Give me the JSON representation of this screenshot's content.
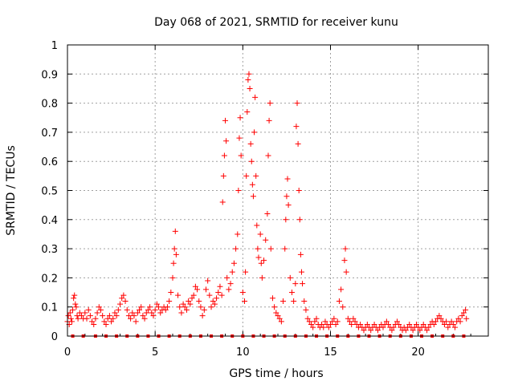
{
  "chart_data": {
    "type": "scatter",
    "title": "Day 068 of 2021, SRMTID for receiver kunu",
    "xlabel": "GPS time / hours",
    "ylabel": "SRMTID / TECUs",
    "xlim": [
      0,
      24
    ],
    "ylim": [
      0,
      1
    ],
    "x_ticks": [
      0,
      5,
      10,
      15,
      20
    ],
    "x_tick_labels": [
      "0",
      "5",
      "10",
      "15",
      "20"
    ],
    "y_ticks": [
      0,
      0.1,
      0.2,
      0.3,
      0.4,
      0.5,
      0.6,
      0.7,
      0.8,
      0.9,
      1
    ],
    "y_tick_labels": [
      "0",
      "0.1",
      "0.2",
      "0.3",
      "0.4",
      "0.5",
      "0.6",
      "0.7",
      "0.8",
      "0.9",
      "1"
    ],
    "grid": true,
    "color": "#ff0000",
    "marker": "plus",
    "series": [
      {
        "points": [
          [
            0.0,
            0.05
          ],
          [
            0.05,
            0.07
          ],
          [
            0.1,
            0.04
          ],
          [
            0.15,
            0.08
          ],
          [
            0.2,
            0.06
          ],
          [
            0.25,
            0.05
          ],
          [
            0.3,
            0.09
          ],
          [
            0.35,
            0.13
          ],
          [
            0.4,
            0.14
          ],
          [
            0.45,
            0.11
          ],
          [
            0.5,
            0.1
          ],
          [
            0.55,
            0.07
          ],
          [
            0.6,
            0.06
          ],
          [
            0.7,
            0.08
          ],
          [
            0.8,
            0.07
          ],
          [
            0.9,
            0.06
          ],
          [
            1.0,
            0.08
          ],
          [
            1.1,
            0.06
          ],
          [
            1.2,
            0.09
          ],
          [
            1.3,
            0.07
          ],
          [
            1.4,
            0.05
          ],
          [
            1.5,
            0.04
          ],
          [
            1.6,
            0.06
          ],
          [
            1.7,
            0.08
          ],
          [
            1.8,
            0.1
          ],
          [
            1.9,
            0.09
          ],
          [
            2.0,
            0.07
          ],
          [
            2.1,
            0.05
          ],
          [
            2.2,
            0.04
          ],
          [
            2.3,
            0.06
          ],
          [
            2.4,
            0.07
          ],
          [
            2.5,
            0.05
          ],
          [
            2.6,
            0.06
          ],
          [
            2.7,
            0.08
          ],
          [
            2.8,
            0.07
          ],
          [
            2.9,
            0.09
          ],
          [
            3.0,
            0.11
          ],
          [
            3.1,
            0.13
          ],
          [
            3.2,
            0.14
          ],
          [
            3.3,
            0.12
          ],
          [
            3.4,
            0.09
          ],
          [
            3.5,
            0.07
          ],
          [
            3.6,
            0.06
          ],
          [
            3.7,
            0.08
          ],
          [
            3.8,
            0.07
          ],
          [
            3.9,
            0.05
          ],
          [
            4.0,
            0.08
          ],
          [
            4.1,
            0.09
          ],
          [
            4.2,
            0.1
          ],
          [
            4.3,
            0.07
          ],
          [
            4.4,
            0.06
          ],
          [
            4.5,
            0.08
          ],
          [
            4.6,
            0.09
          ],
          [
            4.7,
            0.1
          ],
          [
            4.8,
            0.08
          ],
          [
            4.9,
            0.07
          ],
          [
            5.0,
            0.09
          ],
          [
            5.1,
            0.11
          ],
          [
            5.2,
            0.1
          ],
          [
            5.3,
            0.08
          ],
          [
            5.4,
            0.09
          ],
          [
            5.5,
            0.1
          ],
          [
            5.6,
            0.09
          ],
          [
            5.7,
            0.1
          ],
          [
            5.8,
            0.12
          ],
          [
            5.9,
            0.15
          ],
          [
            6.0,
            0.2
          ],
          [
            6.05,
            0.25
          ],
          [
            6.1,
            0.3
          ],
          [
            6.15,
            0.36
          ],
          [
            6.2,
            0.28
          ],
          [
            6.3,
            0.14
          ],
          [
            6.4,
            0.1
          ],
          [
            6.5,
            0.08
          ],
          [
            6.6,
            0.11
          ],
          [
            6.7,
            0.1
          ],
          [
            6.8,
            0.09
          ],
          [
            6.9,
            0.12
          ],
          [
            7.0,
            0.11
          ],
          [
            7.1,
            0.13
          ],
          [
            7.2,
            0.14
          ],
          [
            7.3,
            0.17
          ],
          [
            7.4,
            0.16
          ],
          [
            7.5,
            0.12
          ],
          [
            7.6,
            0.1
          ],
          [
            7.7,
            0.07
          ],
          [
            7.8,
            0.09
          ],
          [
            7.9,
            0.16
          ],
          [
            8.0,
            0.19
          ],
          [
            8.1,
            0.14
          ],
          [
            8.2,
            0.1
          ],
          [
            8.3,
            0.12
          ],
          [
            8.4,
            0.11
          ],
          [
            8.5,
            0.13
          ],
          [
            8.6,
            0.15
          ],
          [
            8.7,
            0.17
          ],
          [
            8.8,
            0.14
          ],
          [
            8.85,
            0.46
          ],
          [
            8.9,
            0.55
          ],
          [
            8.95,
            0.62
          ],
          [
            9.0,
            0.74
          ],
          [
            9.05,
            0.67
          ],
          [
            9.1,
            0.2
          ],
          [
            9.2,
            0.16
          ],
          [
            9.3,
            0.18
          ],
          [
            9.4,
            0.22
          ],
          [
            9.5,
            0.25
          ],
          [
            9.6,
            0.3
          ],
          [
            9.7,
            0.35
          ],
          [
            9.75,
            0.5
          ],
          [
            9.8,
            0.68
          ],
          [
            9.85,
            0.75
          ],
          [
            9.9,
            0.62
          ],
          [
            10.0,
            0.15
          ],
          [
            10.1,
            0.12
          ],
          [
            10.15,
            0.22
          ],
          [
            10.2,
            0.55
          ],
          [
            10.25,
            0.77
          ],
          [
            10.3,
            0.88
          ],
          [
            10.35,
            0.9
          ],
          [
            10.4,
            0.85
          ],
          [
            10.45,
            0.66
          ],
          [
            10.5,
            0.6
          ],
          [
            10.55,
            0.52
          ],
          [
            10.6,
            0.48
          ],
          [
            10.65,
            0.7
          ],
          [
            10.7,
            0.82
          ],
          [
            10.75,
            0.55
          ],
          [
            10.8,
            0.38
          ],
          [
            10.85,
            0.3
          ],
          [
            10.9,
            0.27
          ],
          [
            11.0,
            0.35
          ],
          [
            11.05,
            0.25
          ],
          [
            11.1,
            0.2
          ],
          [
            11.2,
            0.26
          ],
          [
            11.3,
            0.33
          ],
          [
            11.4,
            0.42
          ],
          [
            11.45,
            0.62
          ],
          [
            11.5,
            0.74
          ],
          [
            11.55,
            0.8
          ],
          [
            11.6,
            0.3
          ],
          [
            11.7,
            0.13
          ],
          [
            11.8,
            0.1
          ],
          [
            11.9,
            0.08
          ],
          [
            12.0,
            0.07
          ],
          [
            12.1,
            0.06
          ],
          [
            12.2,
            0.05
          ],
          [
            12.3,
            0.12
          ],
          [
            12.4,
            0.3
          ],
          [
            12.45,
            0.4
          ],
          [
            12.5,
            0.48
          ],
          [
            12.55,
            0.54
          ],
          [
            12.6,
            0.45
          ],
          [
            12.7,
            0.2
          ],
          [
            12.8,
            0.15
          ],
          [
            12.9,
            0.12
          ],
          [
            13.0,
            0.18
          ],
          [
            13.05,
            0.72
          ],
          [
            13.1,
            0.8
          ],
          [
            13.15,
            0.66
          ],
          [
            13.2,
            0.5
          ],
          [
            13.25,
            0.4
          ],
          [
            13.3,
            0.28
          ],
          [
            13.35,
            0.22
          ],
          [
            13.4,
            0.18
          ],
          [
            13.5,
            0.12
          ],
          [
            13.6,
            0.09
          ],
          [
            13.7,
            0.06
          ],
          [
            13.8,
            0.05
          ],
          [
            13.9,
            0.04
          ],
          [
            14.0,
            0.03
          ],
          [
            14.1,
            0.05
          ],
          [
            14.2,
            0.06
          ],
          [
            14.3,
            0.04
          ],
          [
            14.4,
            0.03
          ],
          [
            14.5,
            0.04
          ],
          [
            14.6,
            0.03
          ],
          [
            14.7,
            0.05
          ],
          [
            14.8,
            0.04
          ],
          [
            14.9,
            0.03
          ],
          [
            15.0,
            0.04
          ],
          [
            15.1,
            0.05
          ],
          [
            15.2,
            0.06
          ],
          [
            15.3,
            0.04
          ],
          [
            15.4,
            0.05
          ],
          [
            15.5,
            0.12
          ],
          [
            15.6,
            0.16
          ],
          [
            15.7,
            0.1
          ],
          [
            15.8,
            0.26
          ],
          [
            15.85,
            0.3
          ],
          [
            15.9,
            0.22
          ],
          [
            16.0,
            0.06
          ],
          [
            16.1,
            0.05
          ],
          [
            16.2,
            0.04
          ],
          [
            16.3,
            0.06
          ],
          [
            16.4,
            0.05
          ],
          [
            16.5,
            0.04
          ],
          [
            16.6,
            0.03
          ],
          [
            16.7,
            0.04
          ],
          [
            16.8,
            0.03
          ],
          [
            16.9,
            0.02
          ],
          [
            17.0,
            0.03
          ],
          [
            17.1,
            0.04
          ],
          [
            17.2,
            0.03
          ],
          [
            17.3,
            0.02
          ],
          [
            17.4,
            0.03
          ],
          [
            17.5,
            0.04
          ],
          [
            17.6,
            0.03
          ],
          [
            17.7,
            0.02
          ],
          [
            17.8,
            0.03
          ],
          [
            17.9,
            0.04
          ],
          [
            18.0,
            0.03
          ],
          [
            18.1,
            0.04
          ],
          [
            18.2,
            0.05
          ],
          [
            18.3,
            0.04
          ],
          [
            18.4,
            0.03
          ],
          [
            18.5,
            0.02
          ],
          [
            18.6,
            0.03
          ],
          [
            18.7,
            0.04
          ],
          [
            18.8,
            0.05
          ],
          [
            18.9,
            0.04
          ],
          [
            19.0,
            0.03
          ],
          [
            19.1,
            0.02
          ],
          [
            19.2,
            0.03
          ],
          [
            19.3,
            0.02
          ],
          [
            19.4,
            0.03
          ],
          [
            19.5,
            0.04
          ],
          [
            19.6,
            0.03
          ],
          [
            19.7,
            0.02
          ],
          [
            19.8,
            0.03
          ],
          [
            19.9,
            0.04
          ],
          [
            20.0,
            0.03
          ],
          [
            20.1,
            0.02
          ],
          [
            20.2,
            0.03
          ],
          [
            20.3,
            0.04
          ],
          [
            20.4,
            0.03
          ],
          [
            20.5,
            0.02
          ],
          [
            20.6,
            0.03
          ],
          [
            20.7,
            0.04
          ],
          [
            20.8,
            0.05
          ],
          [
            20.9,
            0.04
          ],
          [
            21.0,
            0.05
          ],
          [
            21.1,
            0.06
          ],
          [
            21.2,
            0.07
          ],
          [
            21.3,
            0.06
          ],
          [
            21.4,
            0.05
          ],
          [
            21.5,
            0.04
          ],
          [
            21.6,
            0.05
          ],
          [
            21.7,
            0.03
          ],
          [
            21.8,
            0.04
          ],
          [
            21.9,
            0.05
          ],
          [
            22.0,
            0.04
          ],
          [
            22.1,
            0.03
          ],
          [
            22.2,
            0.05
          ],
          [
            22.3,
            0.06
          ],
          [
            22.4,
            0.05
          ],
          [
            22.5,
            0.07
          ],
          [
            22.6,
            0.08
          ],
          [
            22.7,
            0.09
          ],
          [
            22.75,
            0.06
          ]
        ]
      },
      {
        "points": [
          [
            0.3,
            0.0
          ],
          [
            0.9,
            0.0
          ],
          [
            1.6,
            0.0
          ],
          [
            2.2,
            0.0
          ],
          [
            2.8,
            0.0
          ],
          [
            3.4,
            0.0
          ],
          [
            4.0,
            0.0
          ],
          [
            4.6,
            0.0
          ],
          [
            5.2,
            0.0
          ],
          [
            5.8,
            0.0
          ],
          [
            6.4,
            0.0
          ],
          [
            7.0,
            0.0
          ],
          [
            7.6,
            0.0
          ],
          [
            8.2,
            0.0
          ],
          [
            8.8,
            0.0
          ],
          [
            9.4,
            0.0
          ],
          [
            10.0,
            0.0
          ],
          [
            10.6,
            0.0
          ],
          [
            11.2,
            0.0
          ],
          [
            11.8,
            0.0
          ],
          [
            12.4,
            0.0
          ],
          [
            13.0,
            0.0
          ],
          [
            13.6,
            0.0
          ],
          [
            14.2,
            0.0
          ],
          [
            14.8,
            0.0
          ],
          [
            15.4,
            0.0
          ],
          [
            16.0,
            0.0
          ],
          [
            16.6,
            0.0
          ],
          [
            17.2,
            0.0
          ],
          [
            17.8,
            0.0
          ],
          [
            18.4,
            0.0
          ],
          [
            19.0,
            0.0
          ],
          [
            19.6,
            0.0
          ],
          [
            20.2,
            0.0
          ],
          [
            20.8,
            0.0
          ],
          [
            21.4,
            0.0
          ],
          [
            22.0,
            0.0
          ],
          [
            22.6,
            0.0
          ]
        ],
        "marker": "square"
      }
    ]
  }
}
